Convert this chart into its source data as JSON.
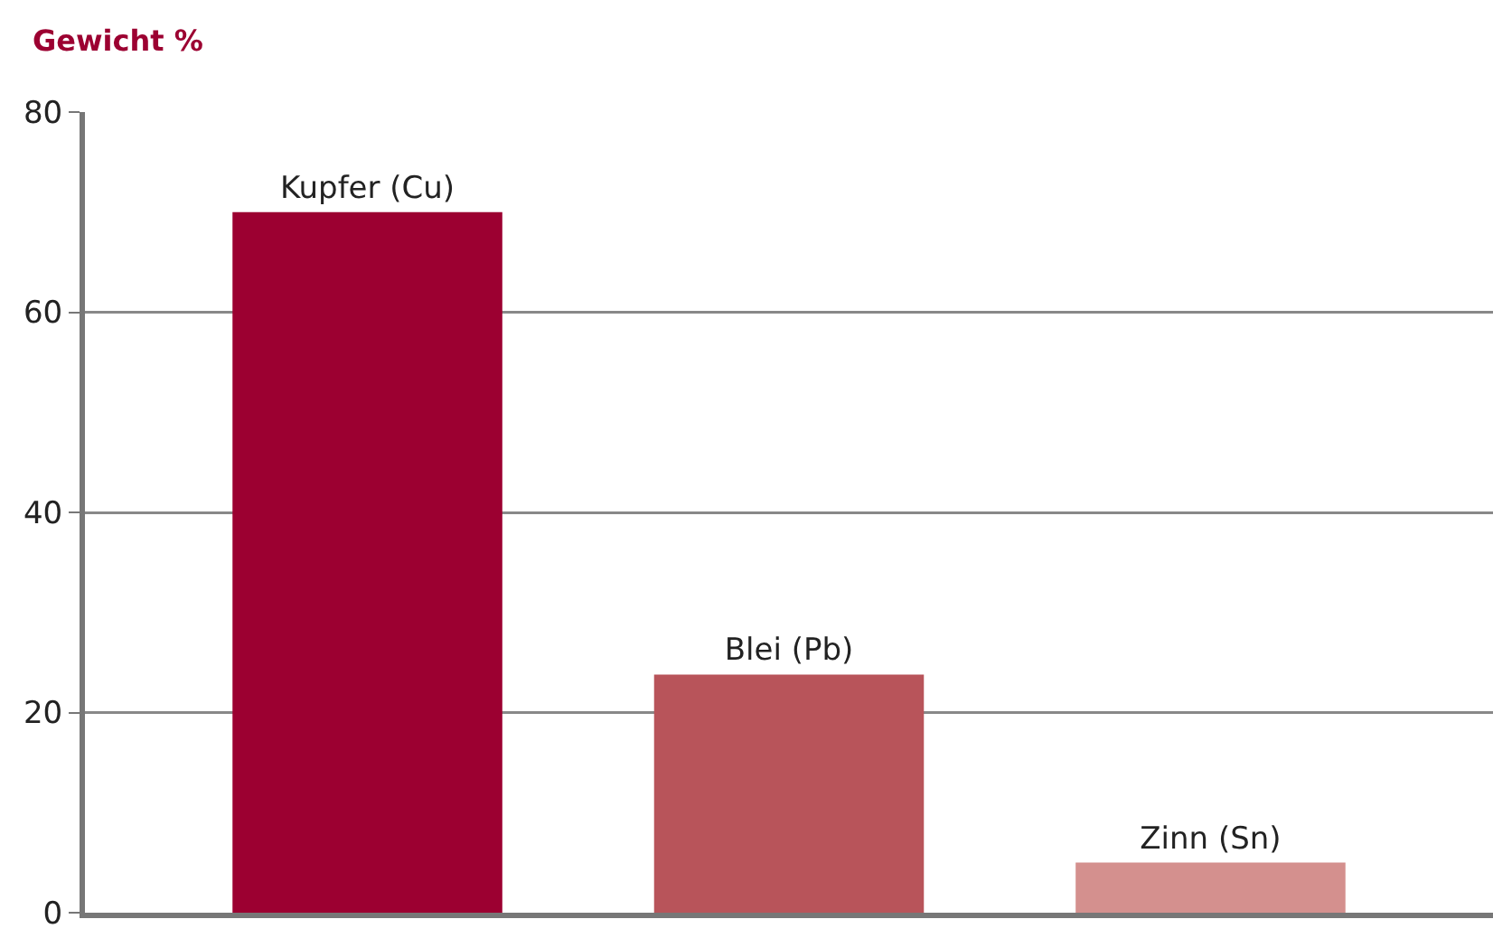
{
  "chart_data": {
    "type": "bar",
    "ylabel": "Gewicht %",
    "categories": [
      "Kupfer (Cu)",
      "Blei (Pb)",
      "Zinn (Sn)"
    ],
    "values": [
      70,
      23.8,
      5
    ],
    "colors": [
      "#9c0031",
      "#b8545a",
      "#d4908e"
    ],
    "ylim": [
      0,
      80
    ],
    "yticks": [
      0,
      20,
      40,
      60,
      80
    ],
    "grid": "y",
    "tick_labels": "y"
  }
}
